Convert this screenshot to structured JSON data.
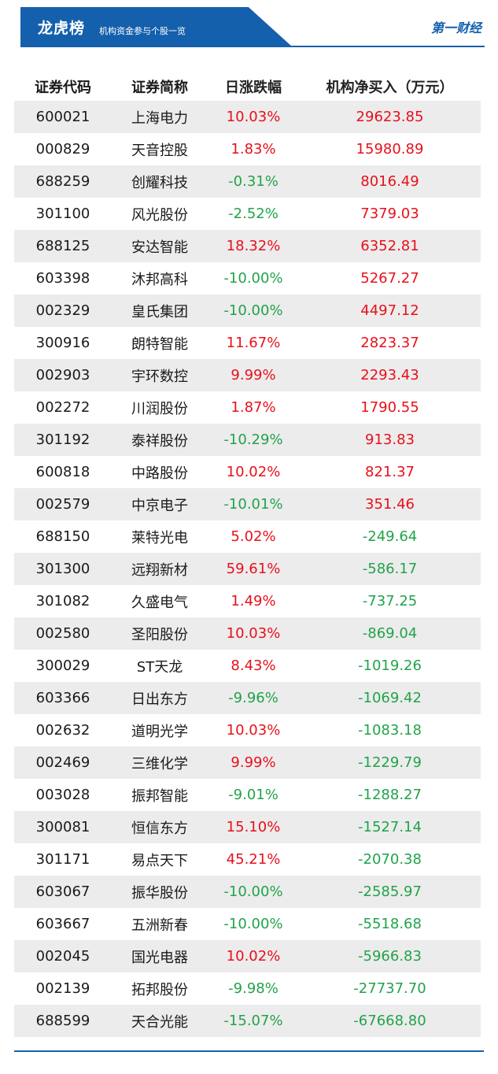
{
  "header": {
    "title": "龙虎榜",
    "subtitle": "机构资金参与个股一览",
    "brand": "第一财经"
  },
  "colors": {
    "accent": "#1560ad",
    "up": "#e8101b",
    "down": "#21a34a",
    "row_alt": "#ececec"
  },
  "table": {
    "headers": [
      "证券代码",
      "证券简称",
      "日涨跌幅",
      "机构净买入（万元）"
    ],
    "rows": [
      {
        "code": "600021",
        "name": "上海电力",
        "change": "10.03%",
        "net": "29623.85"
      },
      {
        "code": "000829",
        "name": "天音控股",
        "change": "1.83%",
        "net": "15980.89"
      },
      {
        "code": "688259",
        "name": "创耀科技",
        "change": "-0.31%",
        "net": "8016.49"
      },
      {
        "code": "301100",
        "name": "风光股份",
        "change": "-2.52%",
        "net": "7379.03"
      },
      {
        "code": "688125",
        "name": "安达智能",
        "change": "18.32%",
        "net": "6352.81"
      },
      {
        "code": "603398",
        "name": "沐邦高科",
        "change": "-10.00%",
        "net": "5267.27"
      },
      {
        "code": "002329",
        "name": "皇氏集团",
        "change": "-10.00%",
        "net": "4497.12"
      },
      {
        "code": "300916",
        "name": "朗特智能",
        "change": "11.67%",
        "net": "2823.37"
      },
      {
        "code": "002903",
        "name": "宇环数控",
        "change": "9.99%",
        "net": "2293.43"
      },
      {
        "code": "002272",
        "name": "川润股份",
        "change": "1.87%",
        "net": "1790.55"
      },
      {
        "code": "301192",
        "name": "泰祥股份",
        "change": "-10.29%",
        "net": "913.83"
      },
      {
        "code": "600818",
        "name": "中路股份",
        "change": "10.02%",
        "net": "821.37"
      },
      {
        "code": "002579",
        "name": "中京电子",
        "change": "-10.01%",
        "net": "351.46"
      },
      {
        "code": "688150",
        "name": "莱特光电",
        "change": "5.02%",
        "net": "-249.64"
      },
      {
        "code": "301300",
        "name": "远翔新材",
        "change": "59.61%",
        "net": "-586.17"
      },
      {
        "code": "301082",
        "name": "久盛电气",
        "change": "1.49%",
        "net": "-737.25"
      },
      {
        "code": "002580",
        "name": "圣阳股份",
        "change": "10.03%",
        "net": "-869.04"
      },
      {
        "code": "300029",
        "name": "ST天龙",
        "change": "8.43%",
        "net": "-1019.26"
      },
      {
        "code": "603366",
        "name": "日出东方",
        "change": "-9.96%",
        "net": "-1069.42"
      },
      {
        "code": "002632",
        "name": "道明光学",
        "change": "10.03%",
        "net": "-1083.18"
      },
      {
        "code": "002469",
        "name": "三维化学",
        "change": "9.99%",
        "net": "-1229.79"
      },
      {
        "code": "003028",
        "name": "振邦智能",
        "change": "-9.01%",
        "net": "-1288.27"
      },
      {
        "code": "300081",
        "name": "恒信东方",
        "change": "15.10%",
        "net": "-1527.14"
      },
      {
        "code": "301171",
        "name": "易点天下",
        "change": "45.21%",
        "net": "-2070.38"
      },
      {
        "code": "603067",
        "name": "振华股份",
        "change": "-10.00%",
        "net": "-2585.97"
      },
      {
        "code": "603667",
        "name": "五洲新春",
        "change": "-10.00%",
        "net": "-5518.68"
      },
      {
        "code": "002045",
        "name": "国光电器",
        "change": "10.02%",
        "net": "-5966.83"
      },
      {
        "code": "002139",
        "name": "拓邦股份",
        "change": "-9.98%",
        "net": "-27737.70"
      },
      {
        "code": "688599",
        "name": "天合光能",
        "change": "-15.07%",
        "net": "-67668.80"
      }
    ]
  }
}
